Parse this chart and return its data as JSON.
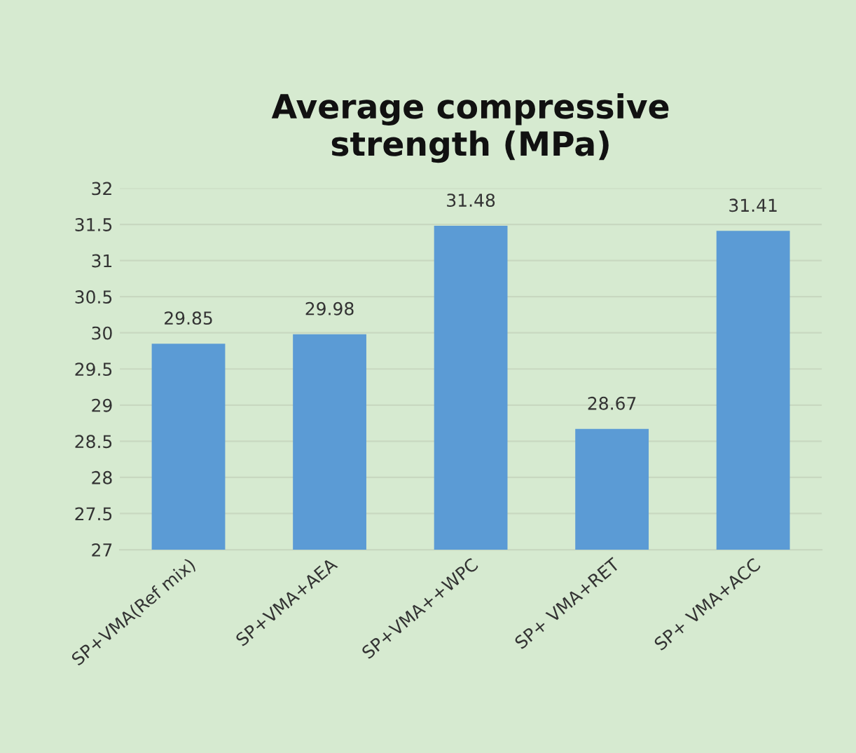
{
  "chart_data": {
    "type": "bar",
    "title": "Average compressive\nstrength (MPa)",
    "categories": [
      "SP+VMA(Ref mix)",
      "SP+VMA+AEA",
      "SP+VMA++WPC",
      "SP+ VMA+RET",
      "SP+ VMA+ACC"
    ],
    "values": [
      29.85,
      29.98,
      31.48,
      28.67,
      31.41
    ],
    "color": "#5b9bd5",
    "ylim": [
      27,
      32
    ],
    "yticks": [
      27,
      27.5,
      28,
      28.5,
      29,
      29.5,
      30,
      30.5,
      31,
      31.5,
      32
    ],
    "grid": "y",
    "data_labels": true
  }
}
